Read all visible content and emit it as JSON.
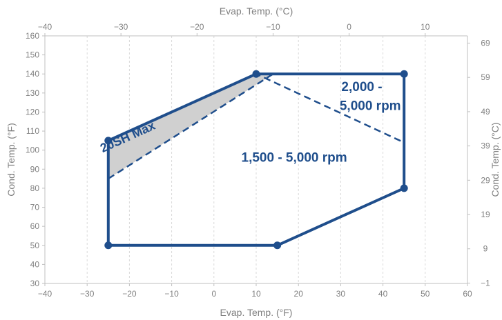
{
  "chart_data": {
    "type": "line",
    "xlabel": "Evap. Temp. (°F)",
    "ylabel": "Cond. Temp. (°F)",
    "x2label": "Evap. Temp. (°C)",
    "y2label": "Cond. Temp. (°C)",
    "xlim": [
      -40,
      60
    ],
    "ylim": [
      30,
      160
    ],
    "x_ticks": [
      -40,
      -30,
      -20,
      -10,
      0,
      10,
      20,
      30,
      40,
      50,
      60
    ],
    "y_ticks": [
      30,
      40,
      50,
      60,
      70,
      80,
      90,
      100,
      110,
      120,
      130,
      140,
      150,
      160
    ],
    "x2_ticks": [
      -40,
      -30,
      -20,
      -10,
      0,
      10
    ],
    "y2_ticks": [
      -1,
      9,
      19,
      29,
      39,
      49,
      59,
      69
    ],
    "grid": "vertical-dashed",
    "colors": {
      "envelope": "#1f4e8c",
      "shade": "#d0d0d0",
      "grid": "#d9d9d9",
      "axis": "#bfbfbf",
      "text": "#808080"
    },
    "series": [
      {
        "style": "solid",
        "x": [
          -25,
          -25,
          15,
          45,
          45,
          10,
          -25
        ],
        "y": [
          50,
          105,
          50,
          80,
          140,
          140,
          105
        ],
        "points": [
          [
            -25,
            50
          ],
          [
            15,
            50
          ],
          [
            45,
            80
          ],
          [
            45,
            140
          ],
          [
            10,
            140
          ],
          [
            -25,
            105
          ]
        ]
      },
      {
        "style": "dashed",
        "points": [
          [
            -25,
            85
          ],
          [
            14,
            140
          ],
          [
            10,
            140
          ],
          [
            45,
            104
          ]
        ]
      },
      {
        "style": "shaded-region",
        "points": [
          [
            -25,
            105
          ],
          [
            10,
            140
          ],
          [
            14,
            140
          ],
          [
            -25,
            85
          ]
        ]
      }
    ],
    "annotations": [
      {
        "text": "20SH Max",
        "x": -20,
        "y": 105
      },
      {
        "text": "2,000 -",
        "x": 35,
        "y": 131
      },
      {
        "text": "5,000 rpm",
        "x": 37,
        "y": 121
      },
      {
        "text": "1,500 - 5,000 rpm",
        "x": 19,
        "y": 94
      }
    ]
  }
}
